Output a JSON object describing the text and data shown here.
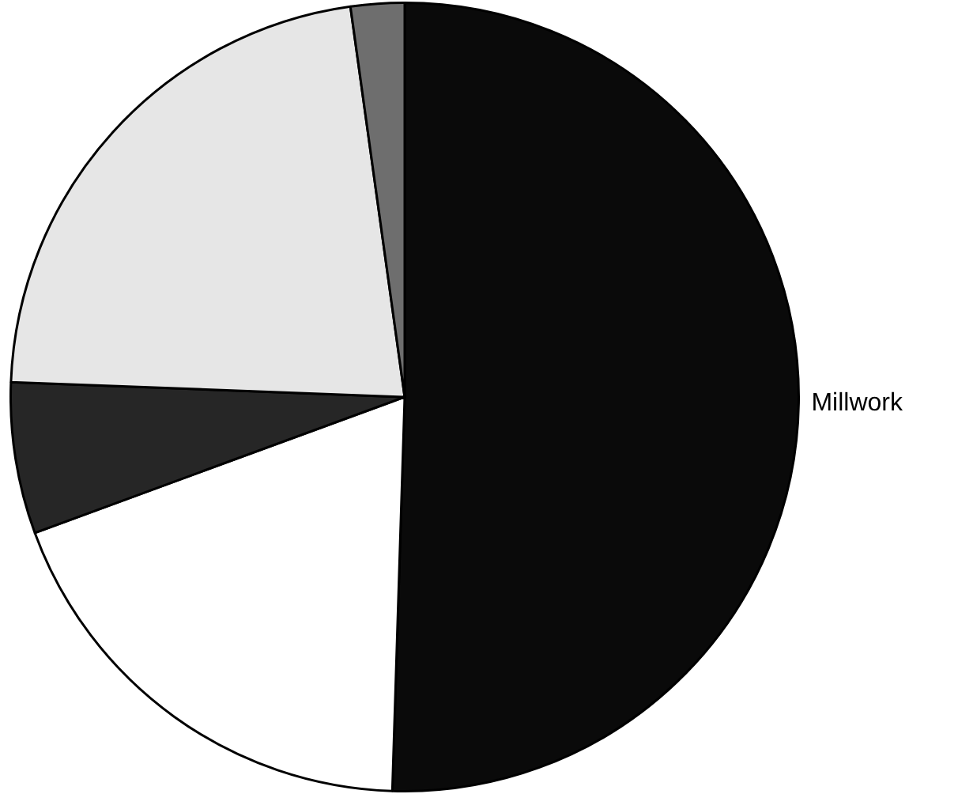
{
  "chart_data": {
    "type": "pie",
    "categories": [
      "Millwork",
      null,
      null,
      null,
      null
    ],
    "values": [
      50.5,
      18.9,
      6.2,
      22.2,
      2.2
    ],
    "colors": [
      "#0a0a0a",
      "#ffffff",
      "#262626",
      "#e6e6e6",
      "#6e6e6e"
    ],
    "legend": false
  }
}
